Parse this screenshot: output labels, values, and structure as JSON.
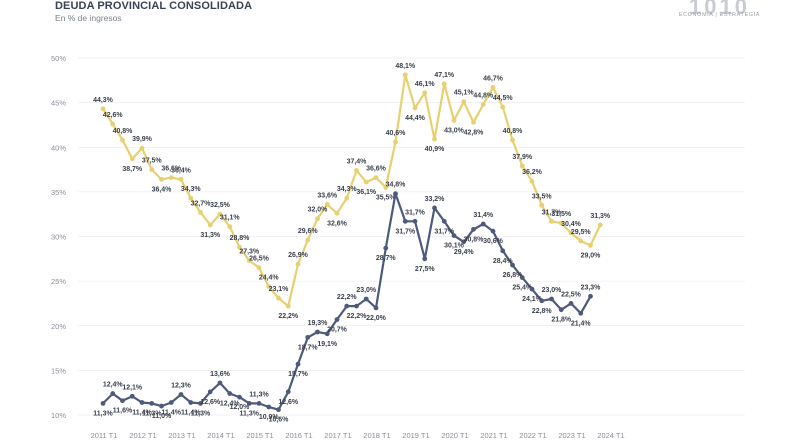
{
  "header": {
    "title": "DEUDA PROVINCIAL CONSOLIDADA",
    "subtitle": "En % de ingresos"
  },
  "logo": {
    "mark": "1010",
    "tagline": "ECONOMÍA | ESTRATEGIA"
  },
  "colors": {
    "yellow_series": "#e8d070",
    "navy_series": "#4d5a7c",
    "grid": "#e6e6ea"
  },
  "chart_data": {
    "type": "line",
    "title": "DEUDA PROVINCIAL CONSOLIDADA",
    "subtitle": "En % de ingresos",
    "ylim": [
      10,
      50
    ],
    "yticks": [
      "10%",
      "15%",
      "20%",
      "25%",
      "30%",
      "35%",
      "40%",
      "45%",
      "50%"
    ],
    "xlabels": [
      "2011 T1",
      "2012 T1",
      "2013 T1",
      "2014 T1",
      "2015 T1",
      "2016 T1",
      "2017 T1",
      "2018 T1",
      "2019 T1",
      "2020 T1",
      "2021 T1",
      "2022 T1",
      "2023 T1",
      "2024 T1"
    ],
    "grid": false,
    "legend": "none",
    "series": [
      {
        "color": "#e8d070",
        "values": [
          44.3,
          42.6,
          40.8,
          38.7,
          39.9,
          37.5,
          36.4,
          36.6,
          36.4,
          34.3,
          32.7,
          31.3,
          32.5,
          31.1,
          28.8,
          27.3,
          26.5,
          24.4,
          23.1,
          22.2,
          26.9,
          29.6,
          32.0,
          33.6,
          32.6,
          34.3,
          37.4,
          36.1,
          36.6,
          35.5,
          40.6,
          48.1,
          44.4,
          46.1,
          40.9,
          47.1,
          43.0,
          45.1,
          42.8,
          44.8,
          46.7,
          44.5,
          40.8,
          37.9,
          36.2,
          33.5,
          31.7,
          31.5,
          30.4,
          29.5,
          29.0,
          31.3
        ]
      },
      {
        "color": "#4d5a7c",
        "values": [
          11.3,
          12.4,
          11.6,
          12.1,
          11.4,
          11.3,
          11.0,
          11.4,
          12.3,
          11.4,
          11.3,
          12.6,
          13.6,
          12.4,
          12.0,
          11.3,
          11.3,
          10.9,
          10.6,
          12.6,
          15.7,
          18.7,
          19.3,
          19.1,
          20.7,
          22.2,
          22.2,
          23.0,
          22.0,
          28.7,
          34.8,
          31.7,
          31.7,
          27.5,
          33.2,
          31.7,
          30.1,
          29.4,
          30.8,
          31.4,
          30.6,
          28.4,
          26.8,
          25.4,
          24.1,
          22.8,
          23.0,
          21.8,
          22.5,
          21.4,
          23.3
        ]
      }
    ]
  }
}
